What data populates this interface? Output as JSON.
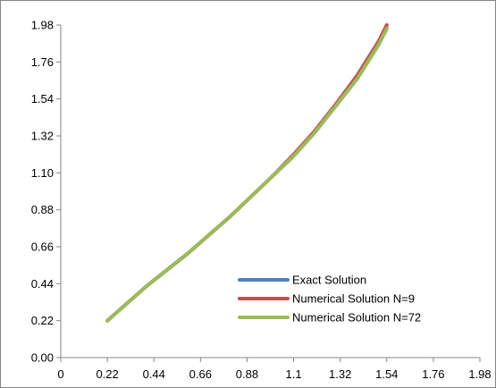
{
  "chart_data": {
    "type": "line",
    "title": "",
    "xlabel": "",
    "ylabel": "",
    "xlim": [
      0,
      1.98
    ],
    "ylim": [
      0,
      1.98
    ],
    "grid": false,
    "legend_position": "bottom-right",
    "x_tick_labels": [
      "0",
      "0.22",
      "0.44",
      "0.66",
      "0.88",
      "1.1",
      "1.32",
      "1.54",
      "1.76",
      "1.98"
    ],
    "y_tick_labels": [
      "0.00",
      "0.22",
      "0.44",
      "0.66",
      "0.88",
      "1.10",
      "1.32",
      "1.54",
      "1.76",
      "1.98"
    ],
    "series": [
      {
        "name": "Exact Solution",
        "color": "#4F81BD",
        "x": [
          0.22,
          0.4,
          0.6,
          0.8,
          1.0,
          1.1,
          1.2,
          1.3,
          1.4,
          1.5,
          1.54
        ],
        "y": [
          0.22,
          0.42,
          0.62,
          0.84,
          1.08,
          1.2,
          1.34,
          1.5,
          1.66,
          1.86,
          1.96
        ]
      },
      {
        "name": "Numerical Solution N=9",
        "color": "#C0504D",
        "x": [
          0.22,
          0.4,
          0.6,
          0.8,
          1.0,
          1.1,
          1.2,
          1.3,
          1.4,
          1.5,
          1.54
        ],
        "y": [
          0.22,
          0.42,
          0.62,
          0.84,
          1.08,
          1.21,
          1.35,
          1.51,
          1.68,
          1.88,
          1.98
        ]
      },
      {
        "name": "Numerical Solution N=72",
        "color": "#9BBB59",
        "x": [
          0.22,
          0.4,
          0.6,
          0.8,
          1.0,
          1.1,
          1.2,
          1.3,
          1.4,
          1.5,
          1.54
        ],
        "y": [
          0.22,
          0.42,
          0.62,
          0.84,
          1.08,
          1.2,
          1.34,
          1.5,
          1.66,
          1.86,
          1.96
        ]
      }
    ]
  }
}
